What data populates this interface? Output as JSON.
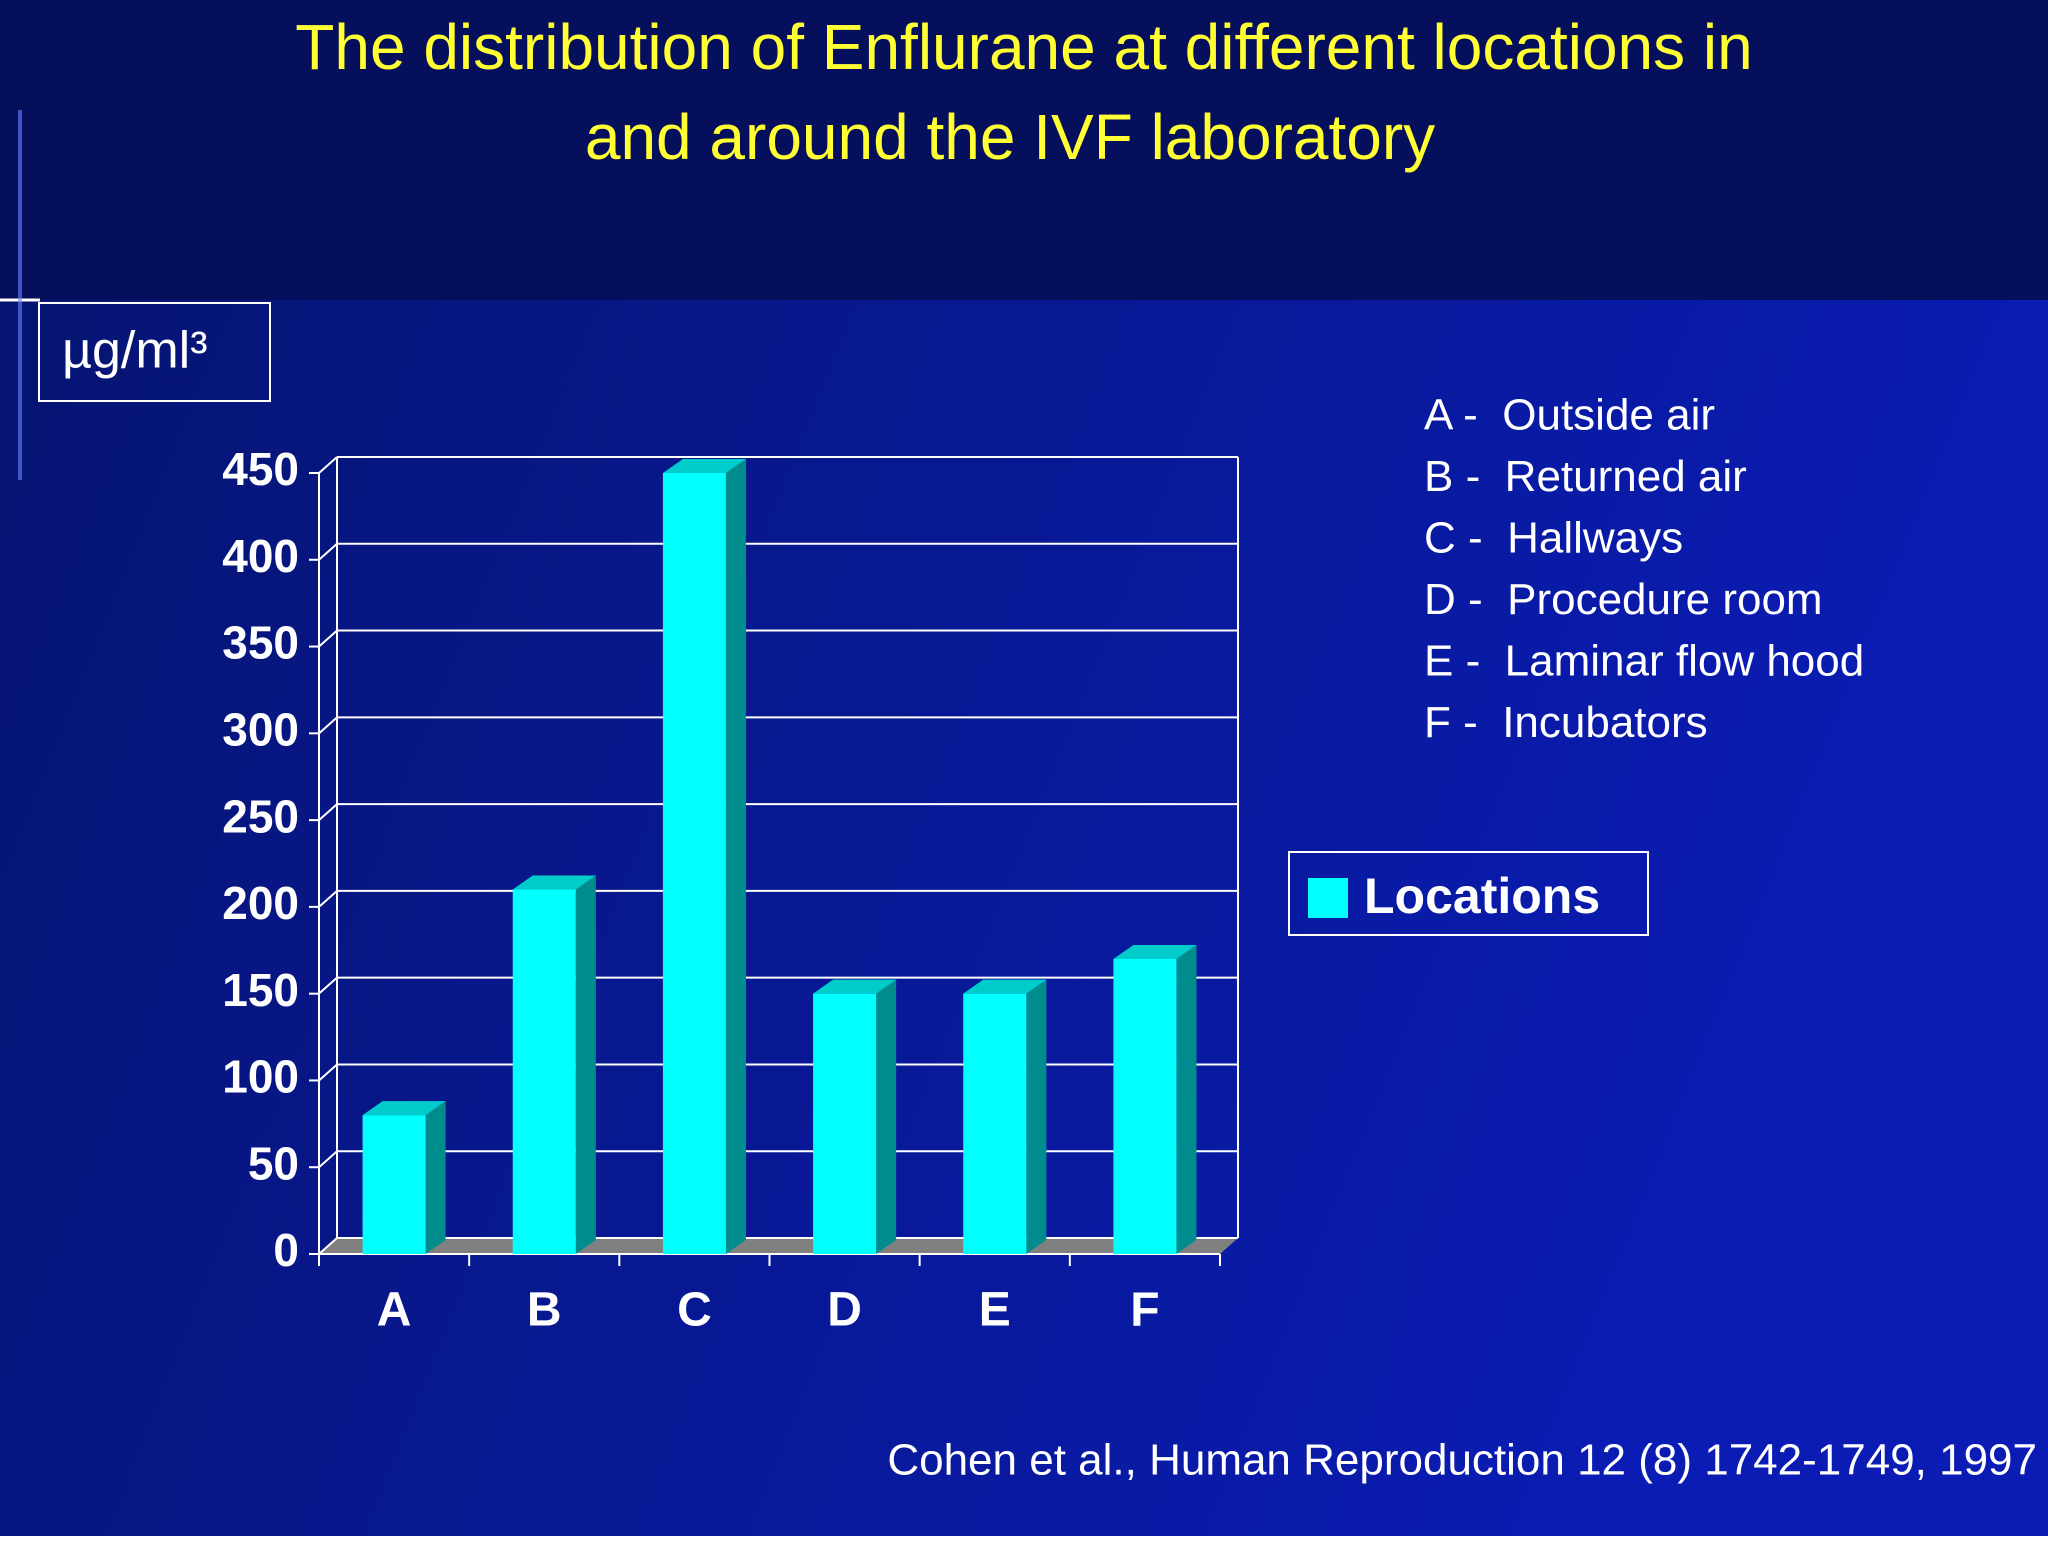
{
  "chart_data": {
    "type": "bar",
    "title": [
      "The distribution of Enflurane at different locations in",
      "and around the IVF laboratory"
    ],
    "y_label": "µg/ml³",
    "categories": [
      "A",
      "B",
      "C",
      "D",
      "E",
      "F"
    ],
    "series": [
      {
        "name": "Locations",
        "color": "#00ffff",
        "values": [
          80,
          210,
          450,
          150,
          150,
          170
        ]
      }
    ],
    "ylim": [
      0,
      450
    ],
    "yticks": [
      0,
      50,
      100,
      150,
      200,
      250,
      300,
      350,
      400,
      450
    ],
    "grid": true,
    "notes": [
      "A -  Outside air",
      "B -  Returned air",
      "C -  Hallways",
      "D -  Procedure room",
      "E -  Laminar flow hood",
      "F -  Incubators"
    ],
    "source": "Cohen et al., Human Reproduction 12 (8) 1742-1749, 1997"
  }
}
